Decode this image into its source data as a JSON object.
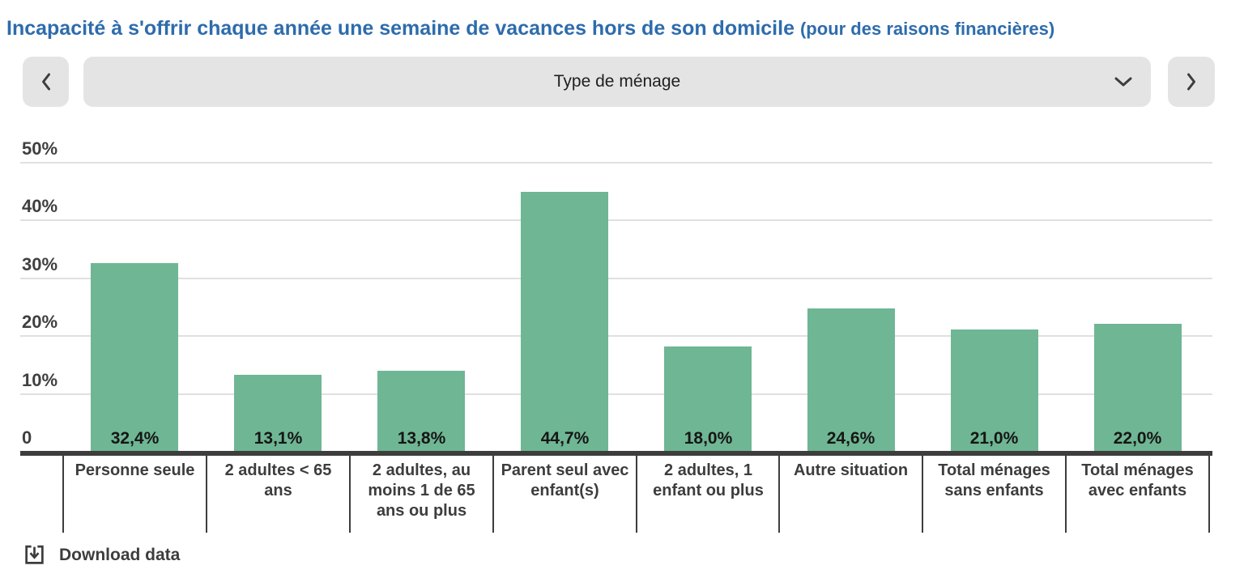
{
  "title": {
    "main": "Incapacité à s'offrir chaque année une semaine de vacances hors de son domicile",
    "suffix": "(pour des raisons financières)"
  },
  "selector": {
    "label": "Type de ménage",
    "prev_icon": "chevron-left-icon",
    "next_icon": "chevron-right-icon",
    "expand_icon": "chevron-down-icon"
  },
  "footer": {
    "download_label": "Download data",
    "download_icon": "download-icon"
  },
  "colors": {
    "title_blue": "#2d6cac",
    "bar_green": "#6fb694",
    "control_bg": "#e4e4e4",
    "axis_dark": "#3d3d3d",
    "gridline_gray": "#e0e0e0"
  },
  "chart_data": {
    "type": "bar",
    "title": "Incapacité à s'offrir chaque année une semaine de vacances hors de son domicile (pour des raisons financières)",
    "categories": [
      "Personne seule",
      "2 adultes < 65 ans",
      "2 adultes, au moins 1 de 65 ans ou plus",
      "Parent seul avec enfant(s)",
      "2 adultes, 1 enfant ou plus",
      "Autre situation",
      "Total ménages sans enfants",
      "Total ménages avec enfants"
    ],
    "values": [
      32.4,
      13.1,
      13.8,
      44.7,
      18.0,
      24.6,
      21.0,
      22.0
    ],
    "value_labels": [
      "32,4%",
      "13,1%",
      "13,8%",
      "44,7%",
      "18,0%",
      "24,6%",
      "21,0%",
      "22,0%"
    ],
    "xlabel": "",
    "ylabel": "",
    "ylim": [
      0,
      50
    ],
    "ytick_values": [
      50,
      40,
      30,
      20,
      10,
      0
    ],
    "ytick_labels": [
      "50%",
      "40%",
      "30%",
      "20%",
      "10%",
      "0"
    ],
    "grid": "horizontal",
    "legend": "none",
    "bar_color": "#6fb694",
    "value_label_position": "inside-bottom"
  }
}
